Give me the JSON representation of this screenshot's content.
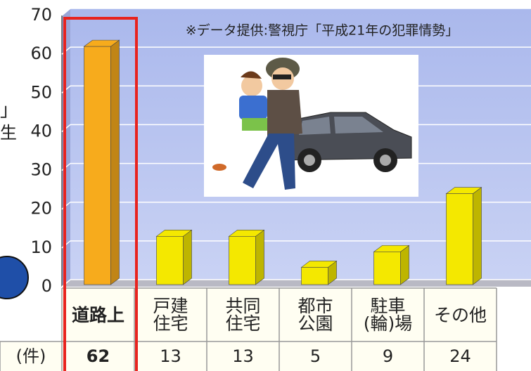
{
  "chart_data": {
    "type": "bar3d",
    "annotation": "※データ提供:警視庁「平成21年の犯罪情勢」",
    "side_fragments": [
      "」",
      "生"
    ],
    "unit_label": "(件)",
    "categories": [
      "道路上",
      "戸建\n住宅",
      "共同\n住宅",
      "都市\n公園",
      "駐車\n(輪)場",
      "その他"
    ],
    "values": [
      62,
      13,
      13,
      5,
      9,
      24
    ],
    "colors": [
      "#f7ab1c",
      "#f4e800",
      "#f4e800",
      "#f4e800",
      "#f4e800",
      "#f4e800"
    ],
    "ylim": [
      0,
      70
    ],
    "yticks": [
      0,
      10,
      20,
      30,
      40,
      50,
      60,
      70
    ],
    "grid": true
  }
}
